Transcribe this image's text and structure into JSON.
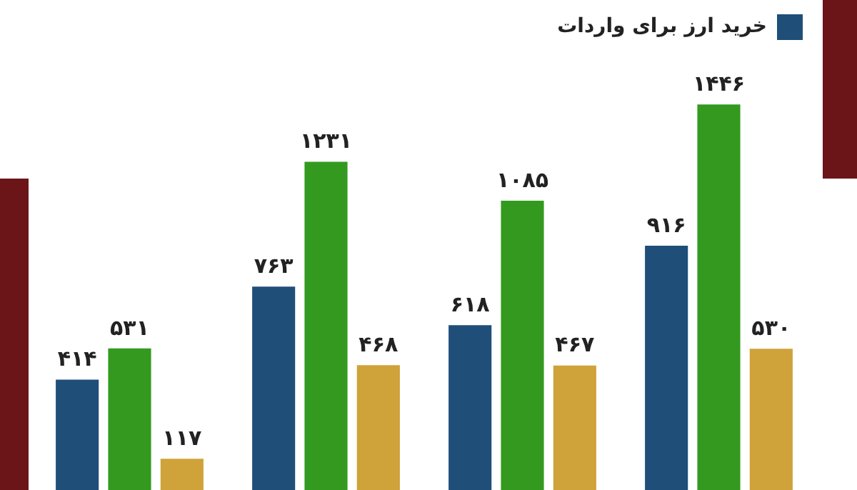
{
  "chart_data": {
    "type": "bar",
    "categories": [
      null,
      null,
      null,
      null
    ],
    "legend": "top right",
    "series": [
      {
        "name": "خرید ارز برای واردات",
        "color": "#1f4e79",
        "values": [
          414,
          763,
          618,
          916
        ],
        "value_labels": [
          "۴۱۴",
          "۷۶۳",
          "۶۱۸",
          "۹۱۶"
        ]
      },
      {
        "color": "#339a1f",
        "values": [
          531,
          1231,
          1085,
          1446
        ],
        "value_labels": [
          "۵۳۱",
          "۱۲۳۱",
          "۱۰۸۵",
          "۱۴۴۶"
        ]
      },
      {
        "color": "#cfa23a",
        "values": [
          117,
          468,
          467,
          530
        ],
        "value_labels": [
          "۱۱۷",
          "۴۶۸",
          "۴۶۷",
          "۵۳۰"
        ]
      }
    ]
  }
}
